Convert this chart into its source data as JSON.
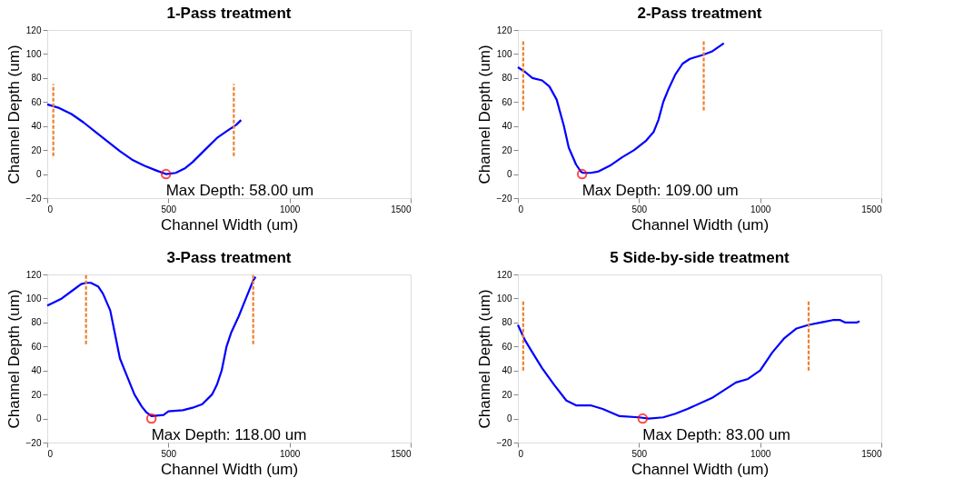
{
  "chart_data": [
    {
      "type": "line",
      "title": "1-Pass treatment",
      "xlabel": "Channel Width (um)",
      "ylabel": "Channel Depth (um)",
      "xlim": [
        0,
        1500
      ],
      "xticks": [
        0,
        500,
        1000,
        1500
      ],
      "ylim": [
        -20,
        120
      ],
      "yticks": [
        -20,
        0,
        20,
        40,
        60,
        80,
        100,
        120
      ],
      "grid": false,
      "annotations": [
        {
          "text": "Max Depth: 58.00 um",
          "x": 490,
          "y": 0
        }
      ],
      "series": [
        {
          "type": "line",
          "color": "#0000ff",
          "line_style": "solid",
          "marker": "none",
          "x": [
            0,
            50,
            100,
            150,
            200,
            250,
            300,
            350,
            400,
            450,
            490,
            530,
            570,
            600,
            650,
            700,
            750,
            780,
            800
          ],
          "values": [
            58,
            55,
            50,
            43,
            35,
            27,
            19,
            12,
            7,
            3,
            0,
            1,
            5,
            10,
            20,
            30,
            37,
            41,
            45
          ]
        },
        {
          "type": "scatter",
          "color": "#ff0000",
          "marker": "circle",
          "x": [
            490
          ],
          "values": [
            0
          ]
        },
        {
          "type": "line",
          "color": "#f07f2c",
          "line_style": "dashed",
          "marker": "none",
          "x": [
            25,
            25
          ],
          "values": [
            15,
            75
          ]
        },
        {
          "type": "line",
          "color": "#f07f2c",
          "line_style": "dashed",
          "marker": "none",
          "x": [
            770,
            770
          ],
          "values": [
            15,
            75
          ]
        }
      ]
    },
    {
      "type": "line",
      "title": "2-Pass treatment",
      "xlabel": "Channel Width (um)",
      "ylabel": "Channel Depth (um)",
      "xlim": [
        0,
        1500
      ],
      "xticks": [
        0,
        500,
        1000,
        1500
      ],
      "ylim": [
        -20,
        120
      ],
      "yticks": [
        -20,
        0,
        20,
        40,
        60,
        80,
        100,
        120
      ],
      "grid": false,
      "annotations": [
        {
          "text": "Max Depth: 109.00 um",
          "x": 265,
          "y": 0
        }
      ],
      "series": [
        {
          "type": "line",
          "color": "#0000ff",
          "line_style": "solid",
          "marker": "none",
          "x": [
            0,
            30,
            60,
            100,
            130,
            160,
            190,
            210,
            240,
            260,
            270,
            300,
            330,
            380,
            430,
            480,
            530,
            560,
            580,
            600,
            620,
            650,
            680,
            710,
            760,
            800,
            850
          ],
          "values": [
            89,
            85,
            80,
            78,
            73,
            62,
            40,
            22,
            8,
            2,
            1,
            1,
            2,
            7,
            14,
            20,
            28,
            35,
            45,
            60,
            70,
            83,
            92,
            96,
            99,
            102,
            109
          ]
        },
        {
          "type": "scatter",
          "color": "#ff0000",
          "marker": "circle",
          "x": [
            265
          ],
          "values": [
            0
          ]
        },
        {
          "type": "line",
          "color": "#f07f2c",
          "line_style": "dashed",
          "marker": "none",
          "x": [
            22,
            22
          ],
          "values": [
            53,
            112
          ]
        },
        {
          "type": "line",
          "color": "#f07f2c",
          "line_style": "dashed",
          "marker": "none",
          "x": [
            767,
            767
          ],
          "values": [
            53,
            112
          ]
        }
      ]
    },
    {
      "type": "line",
      "title": "3-Pass treatment",
      "xlabel": "Channel Width (um)",
      "ylabel": "Channel Depth (um)",
      "xlim": [
        0,
        1500
      ],
      "xticks": [
        0,
        500,
        1000,
        1500
      ],
      "ylim": [
        -20,
        120
      ],
      "yticks": [
        -20,
        0,
        20,
        40,
        60,
        80,
        100,
        120
      ],
      "grid": false,
      "annotations": [
        {
          "text": "Max Depth: 118.00 um",
          "x": 430,
          "y": 0
        }
      ],
      "series": [
        {
          "type": "line",
          "color": "#0000ff",
          "line_style": "solid",
          "marker": "none",
          "x": [
            0,
            20,
            60,
            100,
            140,
            160,
            180,
            210,
            230,
            260,
            280,
            300,
            330,
            360,
            390,
            410,
            430,
            480,
            500,
            560,
            600,
            640,
            680,
            700,
            720,
            740,
            760,
            790,
            820,
            850,
            860
          ],
          "values": [
            94,
            96,
            100,
            106,
            112,
            113,
            113,
            110,
            104,
            90,
            70,
            50,
            35,
            20,
            10,
            5,
            2,
            3,
            6,
            7,
            9,
            12,
            20,
            28,
            40,
            60,
            72,
            85,
            100,
            115,
            118
          ]
        },
        {
          "type": "scatter",
          "color": "#ff0000",
          "marker": "circle",
          "x": [
            430
          ],
          "values": [
            0
          ]
        },
        {
          "type": "line",
          "color": "#f07f2c",
          "line_style": "dashed",
          "marker": "none",
          "x": [
            160,
            160
          ],
          "values": [
            62,
            120
          ]
        },
        {
          "type": "line",
          "color": "#f07f2c",
          "line_style": "dashed",
          "marker": "none",
          "x": [
            850,
            850
          ],
          "values": [
            62,
            120
          ]
        }
      ]
    },
    {
      "type": "line",
      "title": "5 Side-by-side treatment",
      "xlabel": "Channel Width (um)",
      "ylabel": "Channel Depth (um)",
      "xlim": [
        0,
        1500
      ],
      "xticks": [
        0,
        500,
        1000,
        1500
      ],
      "ylim": [
        -20,
        120
      ],
      "yticks": [
        -20,
        0,
        20,
        40,
        60,
        80,
        100,
        120
      ],
      "grid": false,
      "annotations": [
        {
          "text": "Max Depth: 83.00 um",
          "x": 515,
          "y": 0
        }
      ],
      "series": [
        {
          "type": "line",
          "color": "#0000ff",
          "line_style": "solid",
          "marker": "none",
          "x": [
            0,
            30,
            60,
            100,
            150,
            200,
            240,
            300,
            350,
            420,
            500,
            540,
            600,
            650,
            700,
            800,
            900,
            950,
            1000,
            1050,
            1100,
            1150,
            1200,
            1250,
            1300,
            1330,
            1350,
            1400,
            1410
          ],
          "values": [
            78,
            65,
            55,
            42,
            28,
            15,
            11,
            11,
            8,
            2,
            1,
            0,
            1,
            4,
            8,
            17,
            30,
            33,
            40,
            55,
            67,
            75,
            78,
            80,
            82,
            82,
            80,
            80,
            81
          ]
        },
        {
          "type": "scatter",
          "color": "#ff0000",
          "marker": "circle",
          "x": [
            515
          ],
          "values": [
            0
          ]
        },
        {
          "type": "line",
          "color": "#f07f2c",
          "line_style": "dashed",
          "marker": "none",
          "x": [
            22,
            22
          ],
          "values": [
            40,
            98
          ]
        },
        {
          "type": "line",
          "color": "#f07f2c",
          "line_style": "dashed",
          "marker": "none",
          "x": [
            1200,
            1200
          ],
          "values": [
            40,
            98
          ]
        }
      ]
    }
  ]
}
